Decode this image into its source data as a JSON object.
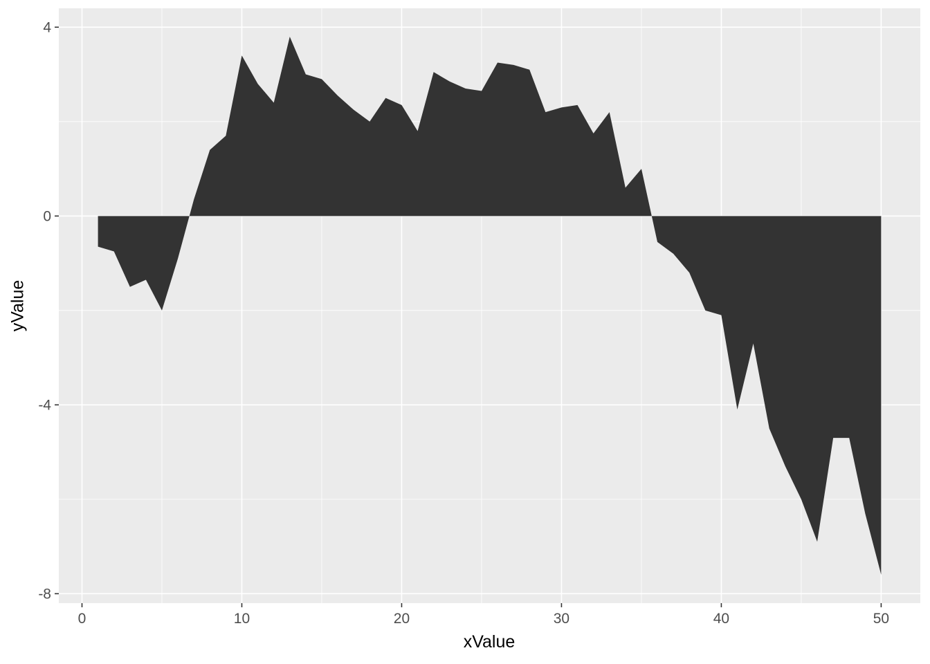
{
  "chart_data": {
    "type": "area",
    "title": "",
    "xlabel": "xValue",
    "ylabel": "yValue",
    "x": [
      1,
      2,
      3,
      4,
      5,
      6,
      7,
      8,
      9,
      10,
      11,
      12,
      13,
      14,
      15,
      16,
      17,
      18,
      19,
      20,
      21,
      22,
      23,
      24,
      25,
      26,
      27,
      28,
      29,
      30,
      31,
      32,
      33,
      34,
      35,
      36,
      37,
      38,
      39,
      40,
      41,
      42,
      43,
      44,
      45,
      46,
      47,
      48,
      49,
      50
    ],
    "y": [
      -0.65,
      -0.75,
      -1.5,
      -1.35,
      -2.0,
      -0.9,
      0.35,
      1.4,
      1.7,
      3.4,
      2.8,
      2.4,
      3.8,
      3.0,
      2.9,
      2.55,
      2.25,
      2.0,
      2.5,
      2.35,
      1.8,
      3.05,
      2.85,
      2.7,
      2.65,
      3.25,
      3.2,
      3.1,
      2.2,
      2.3,
      2.35,
      1.75,
      2.2,
      0.6,
      1.0,
      -0.55,
      -0.8,
      -1.2,
      -2.0,
      -2.1,
      -4.1,
      -2.7,
      -4.5,
      -5.3,
      -6.0,
      -6.9,
      -4.7,
      -4.7,
      -6.3,
      -7.6
    ],
    "baseline": 0,
    "xlim": [
      -1.45,
      52.45
    ],
    "ylim": [
      -8.2,
      4.4
    ],
    "x_ticks": {
      "values": [
        0,
        10,
        20,
        30,
        40,
        50
      ],
      "labels": [
        "0",
        "10",
        "20",
        "30",
        "40",
        "50"
      ]
    },
    "y_ticks": {
      "values": [
        4,
        0,
        -4,
        -8
      ],
      "labels": [
        "4",
        "0",
        "-4",
        "-8"
      ]
    },
    "x_minor": [
      5,
      15,
      25,
      35,
      45
    ],
    "y_minor": [
      2,
      -2,
      -6
    ],
    "grid": "on",
    "legend": "none",
    "colors": {
      "page_background": "#FFFFFF",
      "panel_background": "#EBEBEB",
      "grid": "#FFFFFF",
      "area_fill": "#333333",
      "tick_text": "#4D4D4D",
      "tick_mark": "#333333",
      "axis_title": "#000000"
    }
  }
}
